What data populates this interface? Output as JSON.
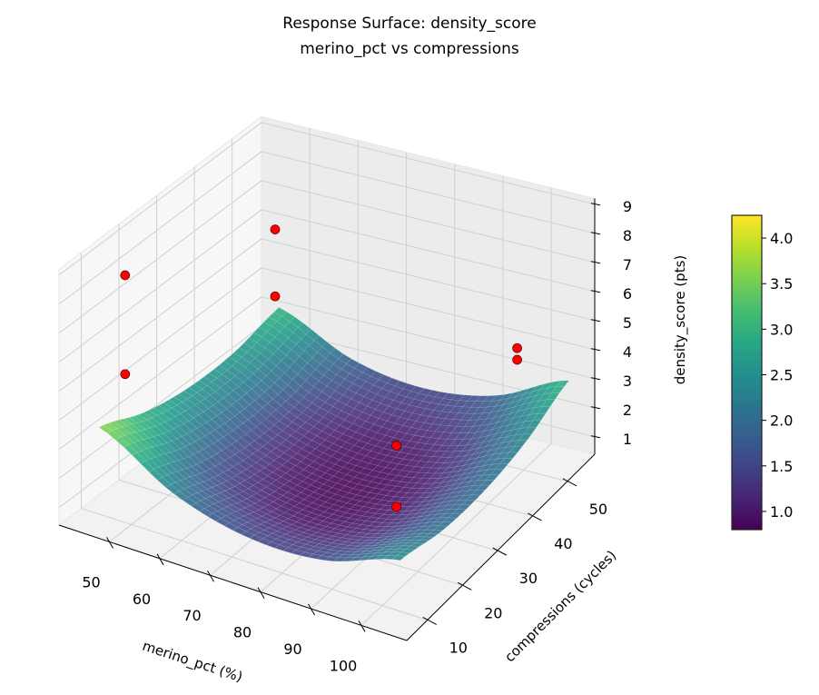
{
  "chart_data": {
    "type": "surface3d",
    "title": "Response Surface: density_score",
    "subtitle": "merino_pct vs compressions",
    "xlabel": "merino_pct (%)",
    "ylabel": "compressions (cycles)",
    "zlabel": "density_score (pts)",
    "xlim": [
      40,
      109
    ],
    "ylim": [
      4.1,
      57.8
    ],
    "zlim": [
      0.4,
      9.2
    ],
    "xticks": [
      50,
      60,
      70,
      80,
      90,
      100
    ],
    "yticks": [
      10,
      20,
      30,
      40,
      50
    ],
    "zticks": [
      1,
      2,
      3,
      4,
      5,
      6,
      7,
      8,
      9
    ],
    "grid": true,
    "colormap": "viridis",
    "colorbar": {
      "range": [
        0.8,
        4.25
      ],
      "ticks": [
        "1.0",
        "1.5",
        "2.0",
        "2.5",
        "3.0",
        "3.5",
        "4.0"
      ]
    },
    "surface": {
      "x": [
        45,
        60,
        75,
        90,
        105
      ],
      "y": [
        8,
        20,
        32,
        44,
        56
      ],
      "z": [
        [
          3.66,
          2.21,
          1.54,
          1.62,
          2.47
        ],
        [
          2.98,
          1.61,
          1.0,
          1.18,
          2.08
        ],
        [
          2.65,
          1.35,
          0.82,
          1.05,
          2.04
        ],
        [
          2.66,
          1.43,
          0.98,
          1.28,
          2.34
        ],
        [
          3.02,
          1.87,
          1.48,
          1.85,
          2.99
        ]
      ]
    },
    "points": [
      {
        "x": 45,
        "y": 15,
        "z": 8.2
      },
      {
        "x": 45,
        "y": 15,
        "z": 4.8
      },
      {
        "x": 45,
        "y": 55,
        "z": 5.8
      },
      {
        "x": 45,
        "y": 55,
        "z": 3.5
      },
      {
        "x": 90,
        "y": 28,
        "z": 3.3
      },
      {
        "x": 90,
        "y": 28,
        "z": 1.2
      },
      {
        "x": 95,
        "y": 55,
        "z": 3.8
      },
      {
        "x": 95,
        "y": 55,
        "z": 3.4
      }
    ],
    "point_color": "#ff0000"
  }
}
